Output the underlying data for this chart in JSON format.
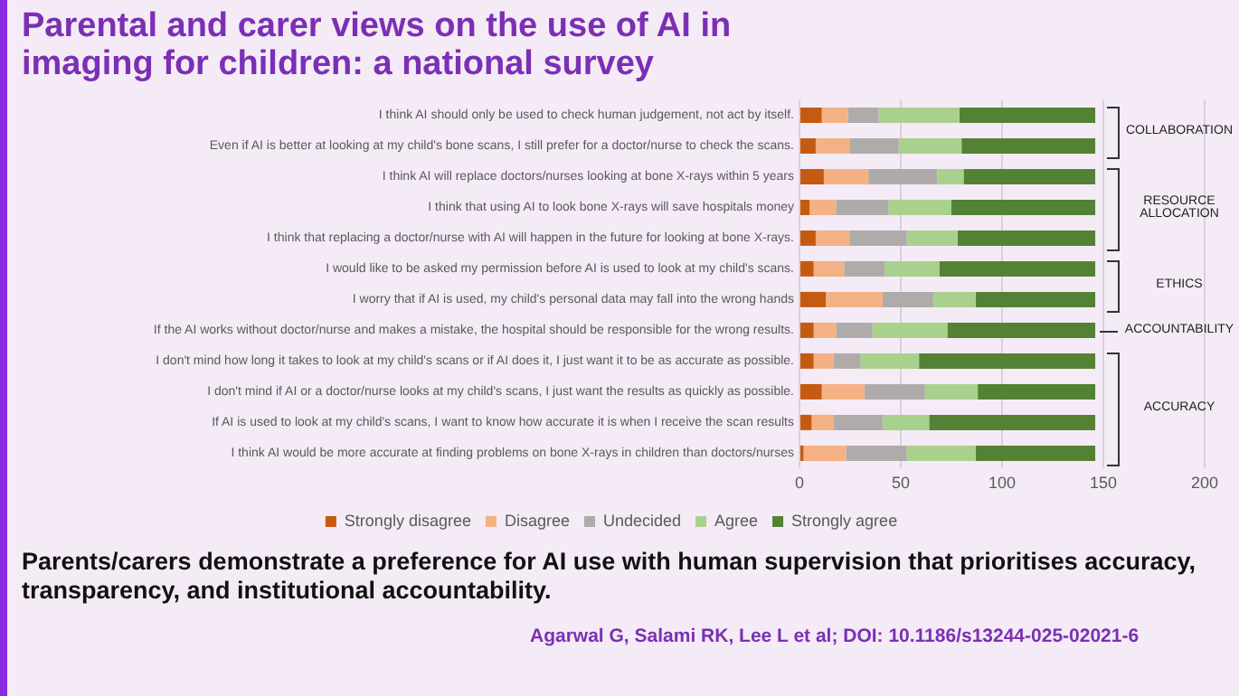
{
  "chart_data": {
    "type": "bar",
    "orientation": "horizontal",
    "stacked": true,
    "title": "Parental and carer views on the use of AI in imaging for children: a national survey",
    "categories": [
      "I think AI should only be used to check human judgement, not act by itself.",
      "Even if AI is better at looking at my child's bone scans, I still prefer for a doctor/nurse to check the scans.",
      "I think AI will replace doctors/nurses looking at bone X-rays within 5 years",
      "I think that using AI to look bone X-rays will save hospitals money",
      "I think that replacing a doctor/nurse with AI will happen in the future for looking at bone X-rays.",
      "I would like to be asked my permission before AI is used to look at my child's scans.",
      "I worry that if AI is used, my child's personal data may fall into the wrong hands",
      "If the AI works without doctor/nurse and makes a mistake, the hospital should be responsible for the wrong results.",
      "I don't mind how long it takes to look at my child's scans or if AI does it, I just want it to be as accurate as possible.",
      "I don't mind if AI or a doctor/nurse looks at my child's scans, I just want the results as quickly as possible.",
      "If AI is used to look at my child's scans, I want to know how accurate it is when I receive the scan results",
      "I think AI would be more accurate at finding problems on bone X-rays in children than doctors/nurses"
    ],
    "series": [
      {
        "name": "Strongly disagree",
        "color": "#c55a11",
        "values": [
          11,
          8,
          12,
          5,
          8,
          7,
          13,
          7,
          7,
          11,
          6,
          2
        ]
      },
      {
        "name": "Disagree",
        "color": "#f4b183",
        "values": [
          13,
          17,
          22,
          13,
          17,
          15,
          28,
          11,
          10,
          21,
          11,
          21
        ]
      },
      {
        "name": "Undecided",
        "color": "#afabab",
        "values": [
          15,
          24,
          34,
          26,
          28,
          20,
          25,
          18,
          13,
          30,
          24,
          30
        ]
      },
      {
        "name": "Agree",
        "color": "#a9d18e",
        "values": [
          40,
          31,
          13,
          31,
          25,
          27,
          21,
          37,
          29,
          26,
          23,
          34
        ]
      },
      {
        "name": "Strongly agree",
        "color": "#548235",
        "values": [
          67,
          66,
          65,
          71,
          68,
          77,
          59,
          73,
          87,
          58,
          82,
          59
        ]
      }
    ],
    "xlim": [
      0,
      200
    ],
    "xticks": [
      0,
      50,
      100,
      150,
      200
    ],
    "grid": "x",
    "legend": "bottom",
    "annotations": [
      "COLLABORATION",
      "RESOURCE ALLOCATION",
      "ETHICS",
      "ACCOUNTABILITY",
      "ACCURACY",
      "Parents/carers demonstrate a preference for AI use with human supervision that prioritises accuracy, transparency, and institutional accountability.",
      "Agarwal G, Salami RK, Lee L et al; DOI: 10.1186/s13244-025-02021-6"
    ]
  }
}
